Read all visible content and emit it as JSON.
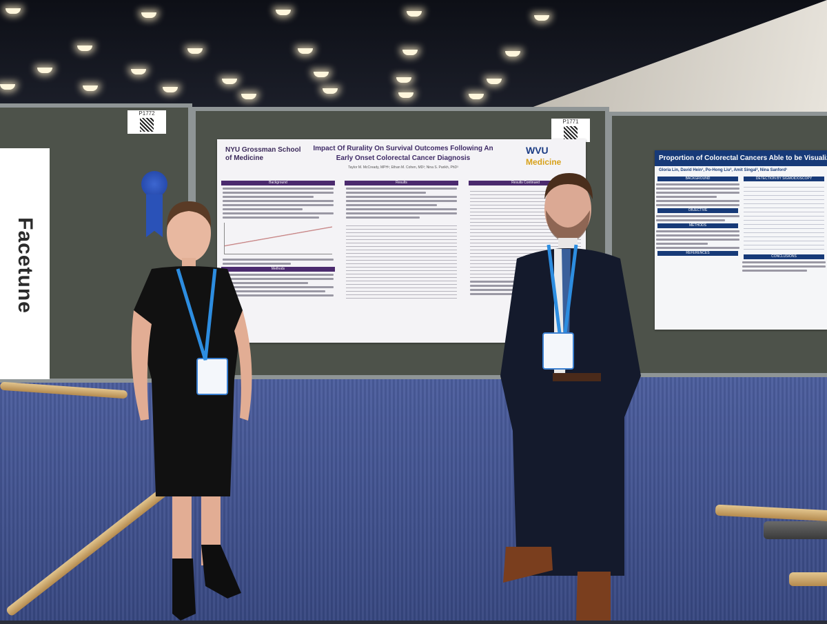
{
  "scene": {
    "watermark": "Facetune",
    "booth_numbers": [
      "P1772",
      "P1771"
    ]
  },
  "poster_main": {
    "title_line1": "Impact Of Rurality On Survival Outcomes Following An",
    "title_line2": "Early Onset Colorectal Cancer Diagnosis",
    "authors": "Taylor M. McCready, MPH¹; Ethan M. Cohen, MD²; Nina S. Parikh, PhD³",
    "left_logo": "NYU Grossman School of Medicine",
    "right_logo_top": "WVU",
    "right_logo_bottom": "Medicine",
    "sections": [
      "Background",
      "Methods",
      "Results",
      "Results Continued"
    ]
  },
  "poster_right": {
    "title": "Proportion of Colorectal Cancers Able to be Visualized on F",
    "authors": "Gloria Lin, David Hein¹, Po-Hong Liu², Amit Singal², Nina Sanford¹",
    "sections": [
      "BACKGROUND",
      "DETECTION BY SIGMOIDOSCOPY",
      "OBJECTIVE",
      "METHODS",
      "CONCLUSIONS",
      "REFERENCES"
    ]
  },
  "colors": {
    "poster_purple": "#4b2a6e",
    "poster_blue": "#173a78",
    "carpet": "#42539a",
    "board": "#4d524a"
  }
}
